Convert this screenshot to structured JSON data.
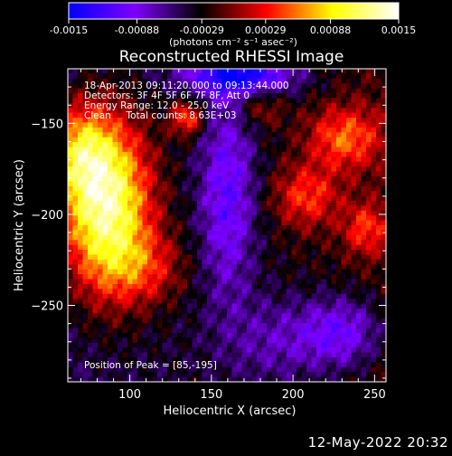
{
  "chart_data": {
    "type": "heatmap",
    "title": "Reconstructed RHESSI Image",
    "xlabel": "Heliocentric X (arcsec)",
    "ylabel": "Heliocentric Y (arcsec)",
    "xlim": [
      62,
      257
    ],
    "ylim": [
      -292,
      -120
    ],
    "x_ticks": [
      100,
      150,
      200,
      250
    ],
    "y_ticks": [
      -150,
      -200,
      -250
    ],
    "colorbar": {
      "label": "(photons cm⁻² s⁻¹ asec⁻²)",
      "range": [
        -0.0015,
        0.0015
      ],
      "tick_values": [
        -0.0015,
        -0.00088,
        -0.00029,
        0.00029,
        0.00088,
        0.0015
      ],
      "tick_labels": [
        "-0.0015",
        "-0.00088",
        "-0.00029",
        "0.00029",
        "0.00088",
        "0.0015"
      ],
      "colormap": [
        "#0000ff",
        "#7f00ff",
        "#000000",
        "#ff0000",
        "#ffff00",
        "#ffffff"
      ]
    },
    "annotations": [
      "18-Apr-2013 09:11:20.000 to 09:13:44.000",
      "Detectors: 3F 4F 5F 6F 7F 8F, Att 0",
      "Energy Range: 12.0 - 25.0 keV",
      "Clean     Total counts: 8.63E+03"
    ],
    "peak_text": "Position of Peak = [85,-195]",
    "peak_position": [
      85,
      -195
    ],
    "sources": [
      {
        "x": 85,
        "y": -195,
        "sx": 20,
        "sy": 34,
        "amp": 0.00175
      },
      {
        "x": 68,
        "y": -165,
        "sx": 14,
        "sy": 18,
        "amp": 0.0008
      },
      {
        "x": 110,
        "y": -230,
        "sx": 18,
        "sy": 14,
        "amp": 0.0005
      },
      {
        "x": 135,
        "y": -147,
        "sx": 7,
        "sy": 7,
        "amp": 0.00085
      },
      {
        "x": 232,
        "y": -158,
        "sx": 16,
        "sy": 12,
        "amp": 0.00075
      },
      {
        "x": 208,
        "y": -190,
        "sx": 14,
        "sy": 12,
        "amp": 0.00065
      },
      {
        "x": 245,
        "y": -208,
        "sx": 10,
        "sy": 10,
        "amp": 0.0006
      },
      {
        "x": 180,
        "y": -140,
        "sx": 10,
        "sy": 8,
        "amp": 0.0004
      },
      {
        "x": 168,
        "y": -124,
        "sx": 24,
        "sy": 8,
        "amp": -0.0011
      },
      {
        "x": 160,
        "y": -190,
        "sx": 12,
        "sy": 40,
        "amp": -0.0007
      },
      {
        "x": 230,
        "y": -265,
        "sx": 18,
        "sy": 14,
        "amp": -0.0007
      },
      {
        "x": 190,
        "y": -270,
        "sx": 22,
        "sy": 18,
        "amp": -0.0004
      }
    ]
  },
  "timestamp": "12-May-2022 20:32"
}
